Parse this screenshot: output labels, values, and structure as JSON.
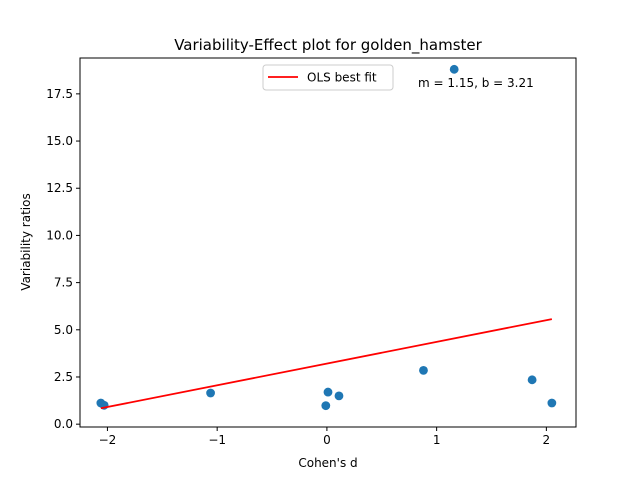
{
  "chart_data": {
    "type": "scatter",
    "title": "Variability-Effect plot for golden_hamster",
    "xlabel": "Cohen's d",
    "ylabel": "Variability ratios",
    "xlim": [
      -2.25,
      2.27
    ],
    "ylim": [
      -0.15,
      19.4
    ],
    "xticks": [
      -2,
      -1,
      0,
      1,
      2
    ],
    "xtick_labels": [
      "−2",
      "−1",
      "0",
      "1",
      "2"
    ],
    "yticks": [
      0.0,
      2.5,
      5.0,
      7.5,
      10.0,
      12.5,
      15.0,
      17.5
    ],
    "ytick_labels": [
      "0.0",
      "2.5",
      "5.0",
      "7.5",
      "10.0",
      "12.5",
      "15.0",
      "17.5"
    ],
    "grid": false,
    "legend_position": "top-center",
    "series": [
      {
        "name": "",
        "kind": "scatter",
        "color": "#1f77b4",
        "points": [
          {
            "x": -2.06,
            "y": 1.12
          },
          {
            "x": -2.03,
            "y": 1.0
          },
          {
            "x": -1.06,
            "y": 1.65
          },
          {
            "x": -0.01,
            "y": 0.98
          },
          {
            "x": 0.01,
            "y": 1.7
          },
          {
            "x": 0.11,
            "y": 1.5
          },
          {
            "x": 0.88,
            "y": 2.85
          },
          {
            "x": 1.16,
            "y": 18.8
          },
          {
            "x": 1.87,
            "y": 2.35
          },
          {
            "x": 2.05,
            "y": 1.12
          }
        ]
      },
      {
        "name": "OLS best fit",
        "kind": "line",
        "color": "#ff0000",
        "slope": 1.15,
        "intercept": 3.21,
        "x_range": [
          -2.06,
          2.05
        ]
      }
    ],
    "annotations": [
      "m = 1.15, b = 3.21"
    ]
  }
}
